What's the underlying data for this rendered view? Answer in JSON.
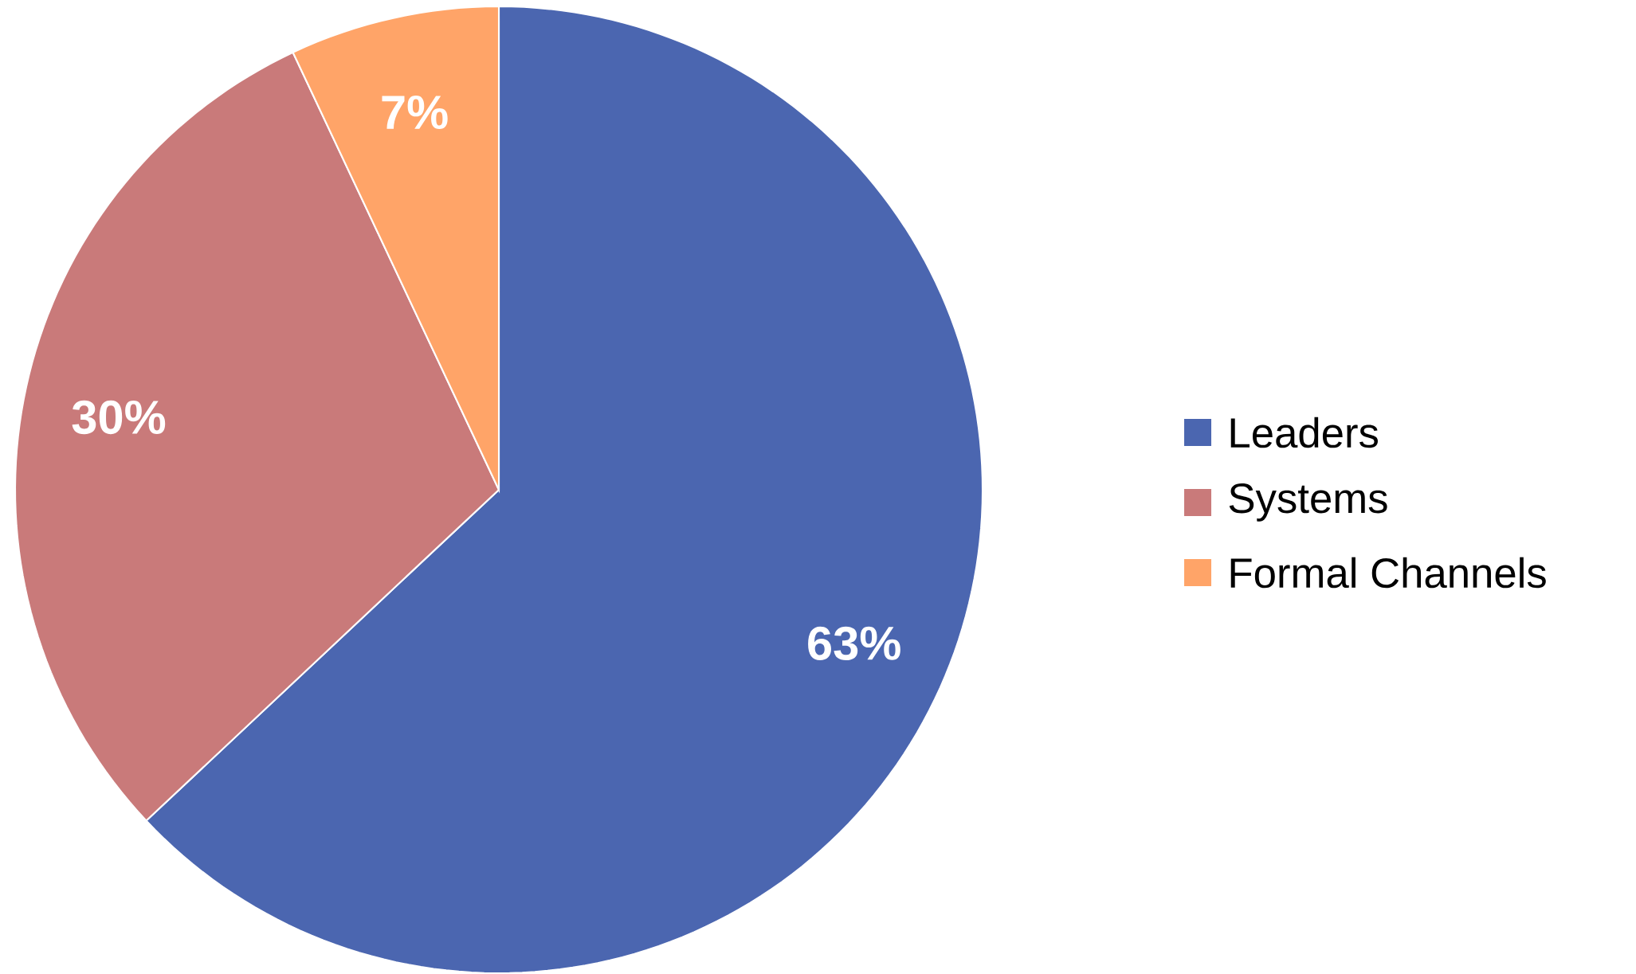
{
  "chart_data": {
    "type": "pie",
    "categories": [
      "Leaders",
      "Systems",
      "Formal Channels"
    ],
    "values": [
      63,
      30,
      7
    ],
    "colors": [
      "#4b66b0",
      "#c97a7a",
      "#ffa468"
    ],
    "value_labels": [
      "63%",
      "30%",
      "7%"
    ],
    "legend": "right"
  }
}
